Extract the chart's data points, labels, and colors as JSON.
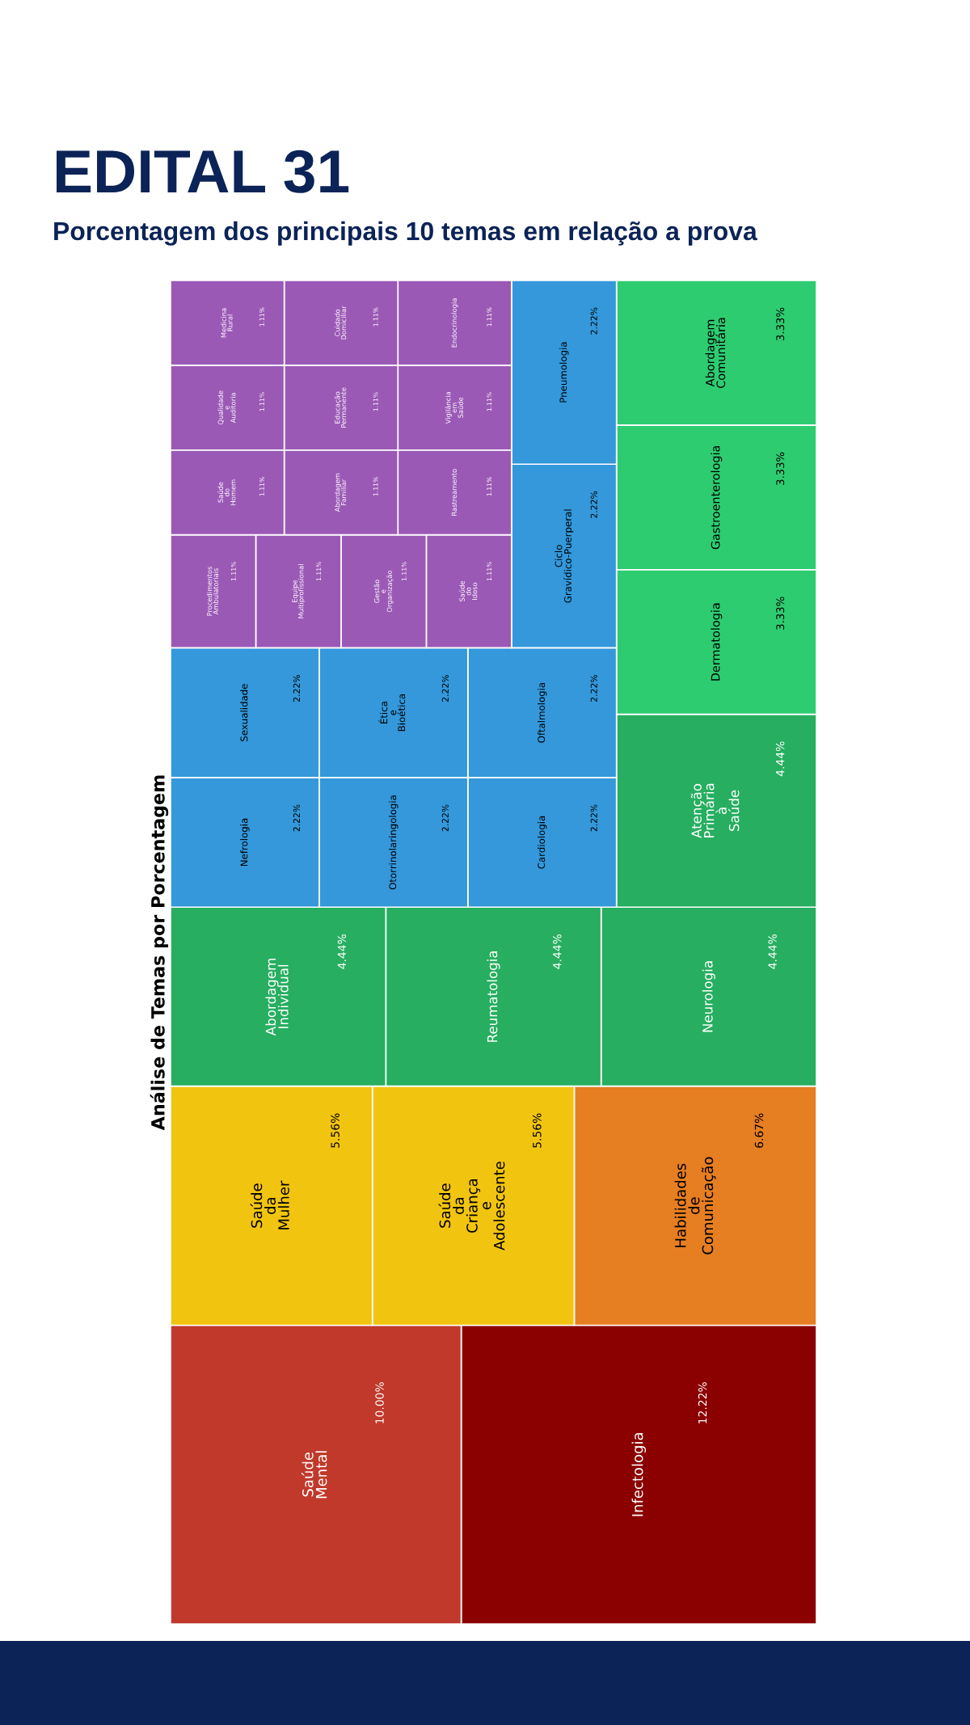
{
  "chart_data": {
    "type": "other",
    "title": "EDITAL 31",
    "subtitle": "Porcentagem dos principais 10 temas em relação a prova",
    "ylabel": "Análise de Temas por Porcentagem",
    "categories": [
      "Infectologia",
      "Saúde Mental",
      "Habilidades de Comunicação",
      "Saúde da Criança e Adolescente",
      "Saúde da Mulher",
      "Neurologia",
      "Reumatologia",
      "Abordagem Individual",
      "Atenção Primária à Saúde",
      "Dermatologia",
      "Gastroenterologia",
      "Abordagem Comunitária",
      "Cardiologia",
      "Otorrinolaringologia",
      "Nefrologia",
      "Oftalmologia",
      "Ética e Bioética",
      "Sexualidade",
      "Ciclo Gravídico-Puerperal",
      "Pneumologia",
      "Saúde do Idoso",
      "Gestão e Organização",
      "Equipe Multiprofissional",
      "Procedimentos Ambulatoriais",
      "Rastreamento",
      "Vigilância em Saúde",
      "Endocrinologia",
      "Abordagem Familiar",
      "Saúde do Homem",
      "Educação Permanente",
      "Cuidado Domiciliar",
      "Qualidade e Auditoria",
      "Medicina Rural"
    ],
    "values": [
      12.22,
      10.0,
      6.67,
      5.56,
      5.56,
      4.44,
      4.44,
      4.44,
      4.44,
      3.33,
      3.33,
      3.33,
      2.22,
      2.22,
      2.22,
      2.22,
      2.22,
      2.22,
      2.22,
      2.22,
      1.11,
      1.11,
      1.11,
      1.11,
      1.11,
      1.11,
      1.11,
      1.11,
      1.11,
      1.11,
      1.11,
      1.11,
      1.11
    ],
    "colors": [
      "#8b0000",
      "#c0392b",
      "#e67e22",
      "#f1c40f",
      "#f1c40f",
      "#27ae60",
      "#27ae60",
      "#27ae60",
      "#27ae60",
      "#2ecc71",
      "#2ecc71",
      "#2ecc71",
      "#3498db",
      "#3498db",
      "#3498db",
      "#3498db",
      "#3498db",
      "#3498db",
      "#3498db",
      "#3498db",
      "#9b59b6",
      "#9b59b6",
      "#9b59b6",
      "#9b59b6",
      "#9b59b6",
      "#9b59b6",
      "#9b59b6",
      "#9b59b6",
      "#9b59b6",
      "#9b59b6",
      "#9b59b6",
      "#9b59b6",
      "#9b59b6"
    ],
    "value_labels": [
      "12.22%",
      "10.00%",
      "6.67%",
      "5.56%",
      "5.56%",
      "4.44%",
      "4.44%",
      "4.44%",
      "4.44%",
      "3.33%",
      "3.33%",
      "3.33%",
      "2.22%",
      "2.22%",
      "2.22%",
      "2.22%",
      "2.22%",
      "2.22%",
      "2.22%",
      "2.22%",
      "1.11%",
      "1.11%",
      "1.11%",
      "1.11%",
      "1.11%",
      "1.11%",
      "1.11%",
      "1.11%",
      "1.11%",
      "1.11%",
      "1.11%",
      "1.11%",
      "1.11%"
    ]
  }
}
